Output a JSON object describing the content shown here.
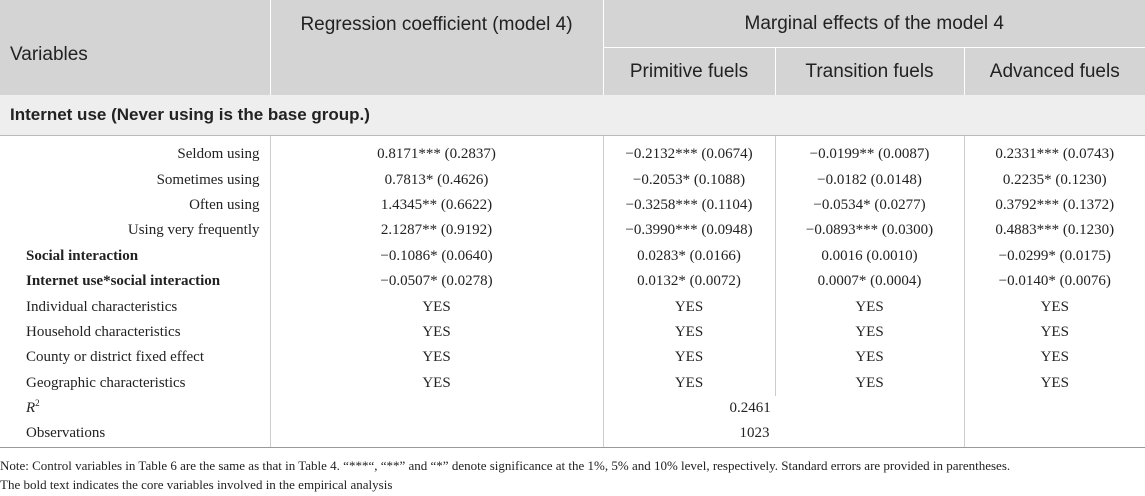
{
  "header": {
    "variables": "Variables",
    "regression": "Regression coefficient (model 4)",
    "marginal": "Marginal effects of the model 4",
    "primitive": "Primitive fuels",
    "transition": "Transition fuels",
    "advanced": "Advanced fuels"
  },
  "section": {
    "title": "Internet use (Never using is the base group.)"
  },
  "rows": [
    {
      "label": "Seldom using",
      "reg": "0.8171*** (0.2837)",
      "prim": "−0.2132*** (0.0674)",
      "trans": "−0.0199** (0.0087)",
      "adv": "0.2331*** (0.0743)"
    },
    {
      "label": "Sometimes using",
      "reg": "0.7813* (0.4626)",
      "prim": "−0.2053* (0.1088)",
      "trans": "−0.0182 (0.0148)",
      "adv": "0.2235* (0.1230)"
    },
    {
      "label": "Often using",
      "reg": "1.4345** (0.6622)",
      "prim": "−0.3258*** (0.1104)",
      "trans": "−0.0534* (0.0277)",
      "adv": "0.3792*** (0.1372)"
    },
    {
      "label": "Using very frequently",
      "reg": "2.1287** (0.9192)",
      "prim": "−0.3990*** (0.0948)",
      "trans": "−0.0893*** (0.0300)",
      "adv": "0.4883*** (0.1230)"
    },
    {
      "label": "Social interaction",
      "reg": "−0.1086* (0.0640)",
      "prim": "0.0283* (0.0166)",
      "trans": "0.0016 (0.0010)",
      "adv": "−0.0299* (0.0175)"
    },
    {
      "label": "Internet use*social interaction",
      "reg": "−0.0507* (0.0278)",
      "prim": "0.0132* (0.0072)",
      "trans": "0.0007* (0.0004)",
      "adv": "−0.0140* (0.0076)"
    },
    {
      "label": "Individual characteristics",
      "reg": "YES",
      "prim": "YES",
      "trans": "YES",
      "adv": "YES"
    },
    {
      "label": "Household characteristics",
      "reg": "YES",
      "prim": "YES",
      "trans": "YES",
      "adv": "YES"
    },
    {
      "label": "County or district fixed effect",
      "reg": "YES",
      "prim": "YES",
      "trans": "YES",
      "adv": "YES"
    },
    {
      "label": "Geographic characteristics",
      "reg": "YES",
      "prim": "YES",
      "trans": "YES",
      "adv": "YES"
    }
  ],
  "r2": {
    "label_base": "R",
    "label_sup": "2",
    "value": "0.2461"
  },
  "observations": {
    "label": "Observations",
    "value": "1023"
  },
  "note": {
    "line1": "Note: Control variables in Table 6 are the same as that in Table 4. “***“, “**” and “*” denote significance at the 1%, 5% and 10% level, respectively. Standard errors are provided in parentheses.",
    "line2": "The bold text indicates the core variables involved in the empirical analysis"
  }
}
